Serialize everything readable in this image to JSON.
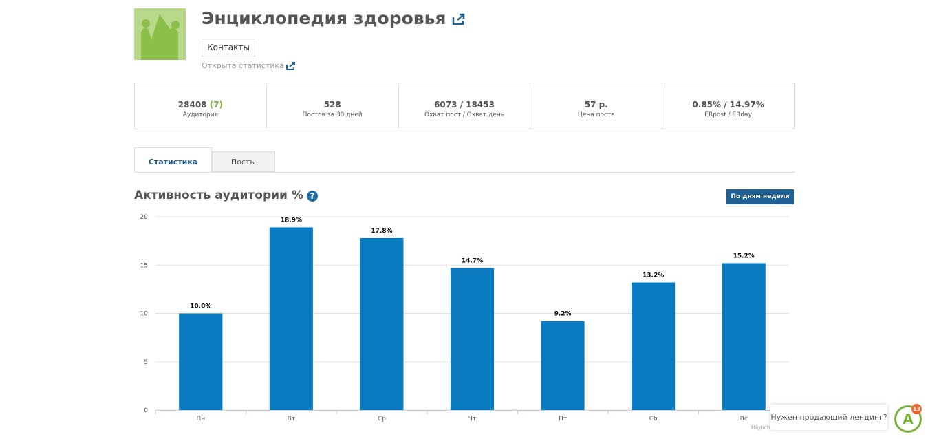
{
  "header": {
    "title": "Энциклопедия здоровья",
    "contacts": "Контакты",
    "open_stats": "Открыта статистика"
  },
  "stats": [
    {
      "value": "28408",
      "extra": "(7)",
      "label": "Аудитория"
    },
    {
      "value": "528",
      "label": "Постов за 30 дней"
    },
    {
      "value": "6073 / 18453",
      "label": "Охват пост / Охват день"
    },
    {
      "value": "57 р.",
      "label": "Цена поста"
    },
    {
      "value": "0.85% / 14.97%",
      "label": "ERpost / ERday"
    }
  ],
  "tabs": [
    "Статистика",
    "Посты"
  ],
  "section": {
    "title": "Активность аудитории %",
    "help": "?",
    "button": "По дням недели"
  },
  "chart_data": {
    "type": "bar",
    "categories": [
      "Пн",
      "Вт",
      "Ср",
      "Чт",
      "Пт",
      "Сб",
      "Вс"
    ],
    "values": [
      10.0,
      18.9,
      17.8,
      14.7,
      9.2,
      13.2,
      15.2
    ],
    "value_labels": [
      "10.0%",
      "18.9%",
      "17.8%",
      "14.7%",
      "9.2%",
      "13.2%",
      "15.2%"
    ],
    "color": "#0a7bc1",
    "ylim": [
      0,
      20
    ],
    "yticks": [
      0,
      5,
      10,
      15,
      20
    ],
    "grid": true,
    "credit": "Highcha"
  },
  "widget": {
    "text": "Нужен продающий лендинг?",
    "badge": "13",
    "icon": "A"
  }
}
